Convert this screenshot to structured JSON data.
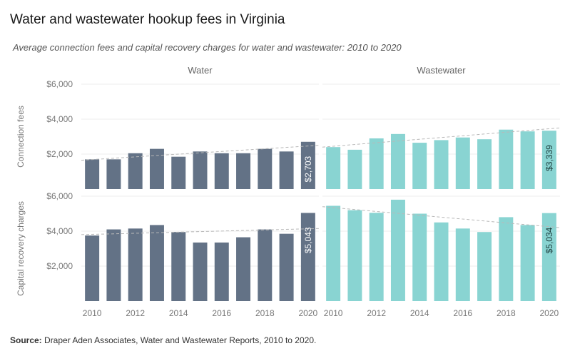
{
  "title": "Water and wastewater hookup fees in Virginia",
  "subtitle": "Average connection fees and capital recovery charges for water and wastewater: 2010 to 2020",
  "source_label": "Source:",
  "source_text": " Draper Aden Associates, Water and Wastewater Reports, 2010 to 2020.",
  "colors": {
    "water": "#637286",
    "wastewater": "#89d4d2",
    "trend": "#b8b8b8"
  },
  "chart_data": {
    "type": "bar",
    "columns": [
      "Water",
      "Wastewater"
    ],
    "rows": [
      "Connection fees",
      "Capital recovery charges"
    ],
    "years": [
      2010,
      2011,
      2012,
      2013,
      2014,
      2015,
      2016,
      2017,
      2018,
      2019,
      2020
    ],
    "x_tick_labels": [
      "2010",
      "2012",
      "2014",
      "2016",
      "2018",
      "2020"
    ],
    "y_tick_labels": [
      "$2,000",
      "$4,000",
      "$6,000"
    ],
    "ylim": [
      0,
      6000
    ],
    "panels": [
      {
        "column": "Water",
        "row": "Connection fees",
        "values": [
          1700,
          1700,
          2050,
          2300,
          1850,
          2150,
          2050,
          2050,
          2300,
          2150,
          2703
        ],
        "end_label": "$2,703",
        "trend": [
          1650,
          2500
        ]
      },
      {
        "column": "Wastewater",
        "row": "Connection fees",
        "values": [
          2400,
          2250,
          2900,
          3150,
          2650,
          2800,
          2950,
          2850,
          3400,
          3300,
          3339
        ],
        "end_label": "$3,339",
        "trend": [
          2400,
          3500
        ]
      },
      {
        "column": "Water",
        "row": "Capital recovery charges",
        "values": [
          3750,
          4100,
          4150,
          4350,
          3950,
          3350,
          3350,
          3650,
          4100,
          3850,
          5043
        ],
        "end_label": "$5,043",
        "trend": [
          3800,
          4150
        ]
      },
      {
        "column": "Wastewater",
        "row": "Capital recovery charges",
        "values": [
          5450,
          5200,
          5050,
          5800,
          5000,
          4500,
          4150,
          3950,
          4800,
          4350,
          5034
        ],
        "end_label": "$5,034",
        "trend": [
          5400,
          4200
        ]
      }
    ]
  }
}
